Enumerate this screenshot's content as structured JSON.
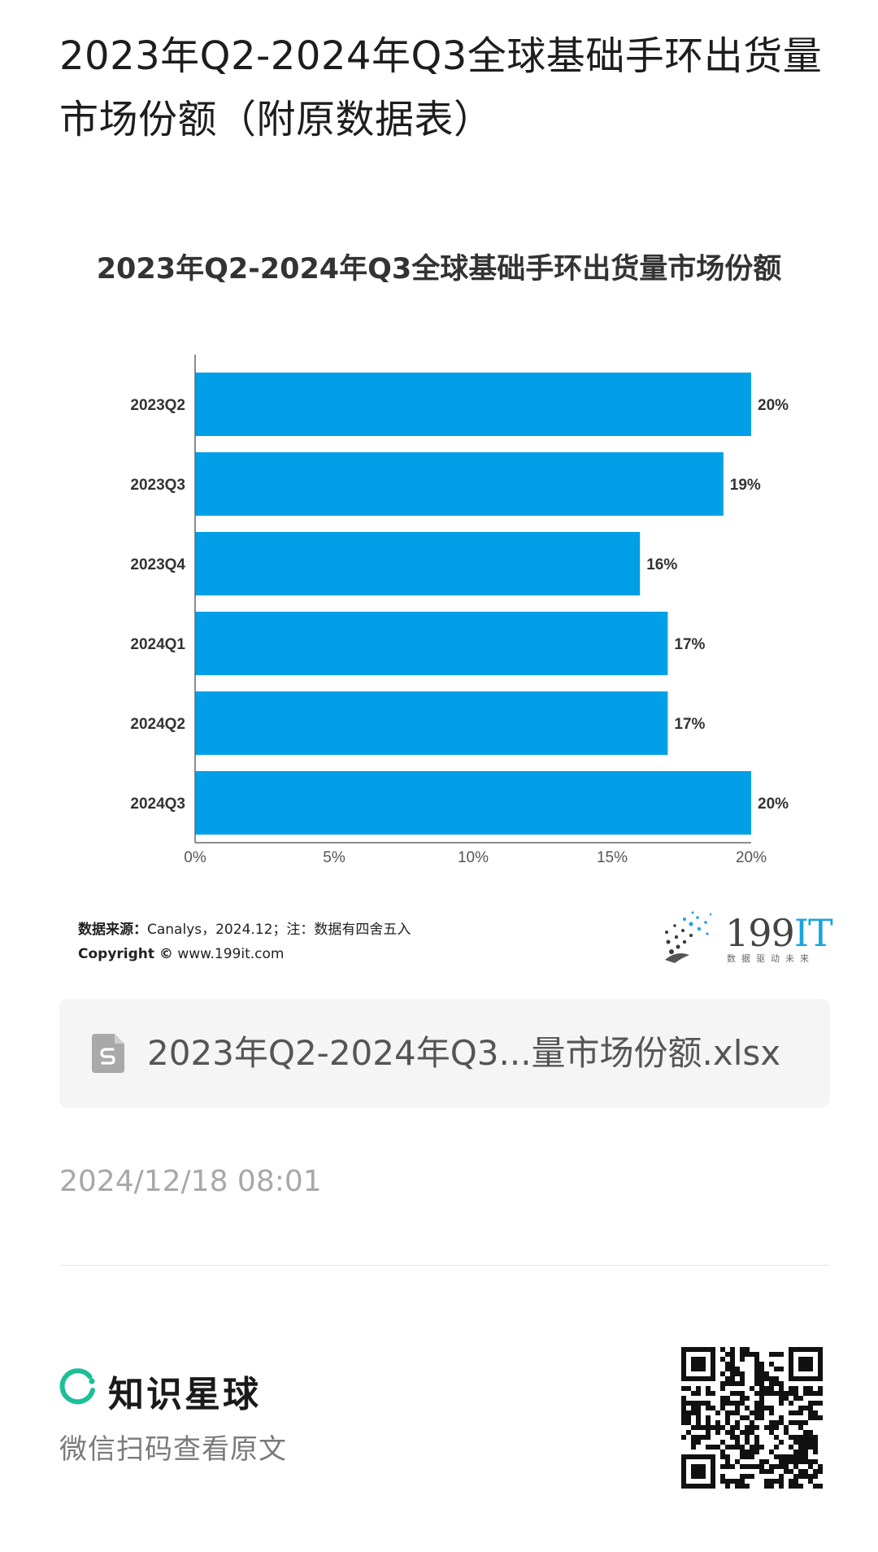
{
  "page": {
    "title": "2023年Q2-2024年Q3全球基础手环出货量市场份额（附原数据表）"
  },
  "chart_data": {
    "type": "bar",
    "orientation": "horizontal",
    "title": "2023年Q2-2024年Q3全球基础手环出货量市场份额",
    "categories": [
      "2023Q2",
      "2023Q3",
      "2023Q4",
      "2024Q1",
      "2024Q2",
      "2024Q3"
    ],
    "values": [
      20,
      19,
      16,
      17,
      17,
      20
    ],
    "value_labels": [
      "20%",
      "19%",
      "16%",
      "17%",
      "17%",
      "20%"
    ],
    "x_ticks": [
      "0%",
      "5%",
      "10%",
      "15%",
      "20%"
    ],
    "xlim": [
      0,
      20
    ],
    "xlabel": "",
    "ylabel": "",
    "bar_color": "#009fe8",
    "grid": false,
    "legend": "none"
  },
  "source": {
    "label": "数据来源：",
    "text": "Canalys，2024.12；注：数据有四舍五入",
    "copyright_label": "Copyright ©",
    "site": "www.199it.com"
  },
  "logo": {
    "number": "199",
    "suffix": "IT",
    "tagline": "数据驱动未来",
    "icon": "dot-burst-logo-icon"
  },
  "attachment": {
    "file_name": "2023年Q2-2024年Q3...量市场份额.xlsx",
    "icon": "spreadsheet-file-icon",
    "icon_color": "#a9a9a9"
  },
  "meta": {
    "timestamp": "2024/12/18 08:01"
  },
  "footer": {
    "brand_name": "知识星球",
    "brand_color": "#1dbf97",
    "scan_text": "微信扫码查看原文",
    "qr_icon": "qr-code-icon"
  }
}
